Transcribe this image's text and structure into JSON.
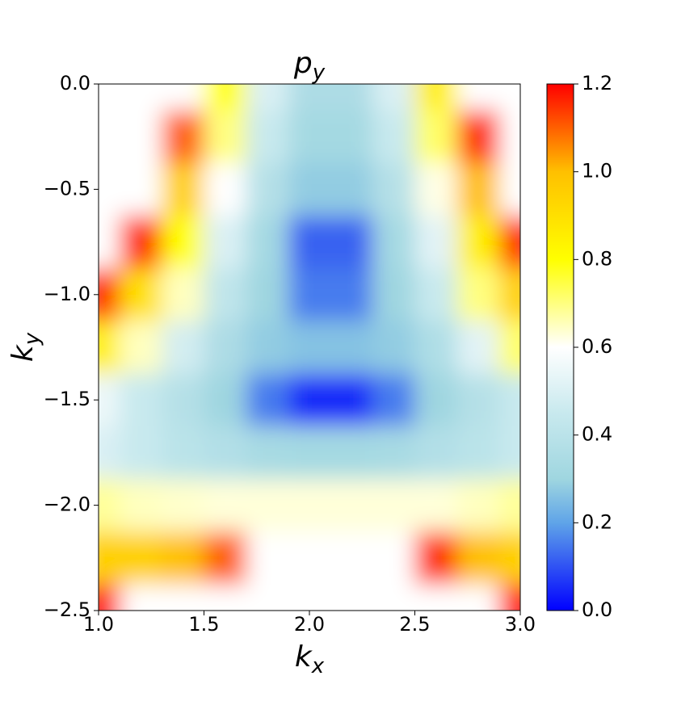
{
  "chart_data": {
    "type": "heatmap",
    "title": "p_y",
    "x_label": "k_x",
    "y_label": "k_y",
    "x": [
      1.0,
      1.2,
      1.4,
      1.6,
      1.8,
      2.0,
      2.2,
      2.4,
      2.6,
      2.8,
      3.0
    ],
    "y": [
      0,
      -0.25,
      -0.5,
      -0.75,
      -1.0,
      -1.25,
      -1.5,
      -1.75,
      -2.0,
      -2.25,
      -2.5
    ],
    "z": [
      [
        null,
        null,
        null,
        0.8,
        0.5,
        0.35,
        0.35,
        0.5,
        0.85,
        null,
        null
      ],
      [
        null,
        null,
        1.1,
        0.7,
        0.45,
        0.32,
        0.32,
        0.45,
        0.72,
        1.15,
        null
      ],
      [
        null,
        null,
        0.95,
        0.6,
        0.38,
        0.28,
        0.28,
        0.38,
        0.62,
        1.0,
        null
      ],
      [
        null,
        1.15,
        0.8,
        0.5,
        0.32,
        0.12,
        0.12,
        0.32,
        0.52,
        0.85,
        1.15
      ],
      [
        1.15,
        0.9,
        0.65,
        0.42,
        0.3,
        0.15,
        0.15,
        0.3,
        0.45,
        0.7,
        0.95
      ],
      [
        0.85,
        0.65,
        0.48,
        0.35,
        0.28,
        0.26,
        0.26,
        0.28,
        0.36,
        0.52,
        0.72
      ],
      [
        0.55,
        0.45,
        0.38,
        0.3,
        0.15,
        0.05,
        0.05,
        0.15,
        0.3,
        0.38,
        0.45
      ],
      [
        0.5,
        0.45,
        0.4,
        0.37,
        0.33,
        0.32,
        0.32,
        0.33,
        0.37,
        0.4,
        0.45
      ],
      [
        0.68,
        0.65,
        0.64,
        0.63,
        0.63,
        0.63,
        0.63,
        0.63,
        0.63,
        0.65,
        0.68
      ],
      [
        0.95,
        0.95,
        1.0,
        1.1,
        null,
        null,
        null,
        null,
        1.15,
        1.0,
        0.95
      ],
      [
        1.18,
        null,
        null,
        null,
        null,
        null,
        null,
        null,
        null,
        null,
        1.18
      ]
    ],
    "xlim": [
      1.0,
      3.0
    ],
    "ylim": [
      -2.5,
      0.0
    ],
    "xticks": [
      {
        "value": 1.0,
        "label": "1.0"
      },
      {
        "value": 1.5,
        "label": "1.5"
      },
      {
        "value": 2.0,
        "label": "2.0"
      },
      {
        "value": 2.5,
        "label": "2.5"
      },
      {
        "value": 3.0,
        "label": "3.0"
      }
    ],
    "yticks": [
      {
        "value": 0.0,
        "label": "0.0"
      },
      {
        "value": -0.5,
        "label": "−0.5"
      },
      {
        "value": -1.0,
        "label": "−1.0"
      },
      {
        "value": -1.5,
        "label": "−1.5"
      },
      {
        "value": -2.0,
        "label": "−2.0"
      },
      {
        "value": -2.5,
        "label": "−2.5"
      }
    ],
    "clim": [
      0.0,
      1.2
    ],
    "cticks": [
      {
        "value": 0.0,
        "label": "0.0"
      },
      {
        "value": 0.2,
        "label": "0.2"
      },
      {
        "value": 0.4,
        "label": "0.4"
      },
      {
        "value": 0.6,
        "label": "0.6"
      },
      {
        "value": 0.8,
        "label": "0.8"
      },
      {
        "value": 1.0,
        "label": "1.0"
      },
      {
        "value": 1.2,
        "label": "1.2"
      }
    ],
    "colormap": [
      {
        "value": 0.0,
        "color": "#0000ff"
      },
      {
        "value": 0.2,
        "color": "#5fa4e8"
      },
      {
        "value": 0.3,
        "color": "#9fd6e0"
      },
      {
        "value": 0.45,
        "color": "#c8e9ee"
      },
      {
        "value": 0.6,
        "color": "#ffffff"
      },
      {
        "value": 0.8,
        "color": "#ffff00"
      },
      {
        "value": 1.0,
        "color": "#ffc000"
      },
      {
        "value": 1.2,
        "color": "#ff0000"
      }
    ]
  }
}
